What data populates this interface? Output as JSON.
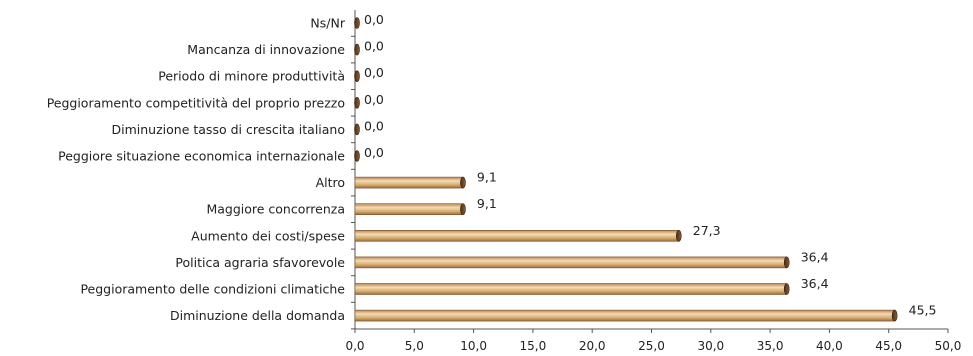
{
  "chart_data": {
    "type": "bar",
    "orientation": "horizontal",
    "categories": [
      "Ns/Nr",
      "Mancanza di innovazione",
      "Periodo di minore produttività",
      "Peggioramento competitività del proprio prezzo",
      "Diminuzione tasso di crescita italiano",
      "Peggiore situazione economica internazionale",
      "Altro",
      "Maggiore concorrenza",
      "Aumento dei costi/spese",
      "Politica agraria sfavorevole",
      "Peggioramento delle condizioni climatiche",
      "Diminuzione della domanda"
    ],
    "values": [
      0.0,
      0.0,
      0.0,
      0.0,
      0.0,
      0.0,
      9.1,
      9.1,
      27.3,
      36.4,
      36.4,
      45.5
    ],
    "value_labels": [
      "0,0",
      "0,0",
      "0,0",
      "0,0",
      "0,0",
      "0,0",
      "9,1",
      "9,1",
      "27,3",
      "36,4",
      "36,4",
      "45,5"
    ],
    "xlim": [
      0,
      50
    ],
    "xticks": [
      "0,0",
      "5,0",
      "10,0",
      "15,0",
      "20,0",
      "25,0",
      "30,0",
      "35,0",
      "40,0",
      "45,0",
      "50,0"
    ],
    "title": "",
    "xlabel": "",
    "ylabel": "",
    "grid": false,
    "legend": "none",
    "colors": {
      "bar_fill": "#d8ab6e",
      "bar_highlight": "#f4dcb4",
      "bar_shadow": "#a9784a",
      "bar_cap": "#6e4a2a",
      "axis": "#555555",
      "text": "#222222"
    }
  }
}
